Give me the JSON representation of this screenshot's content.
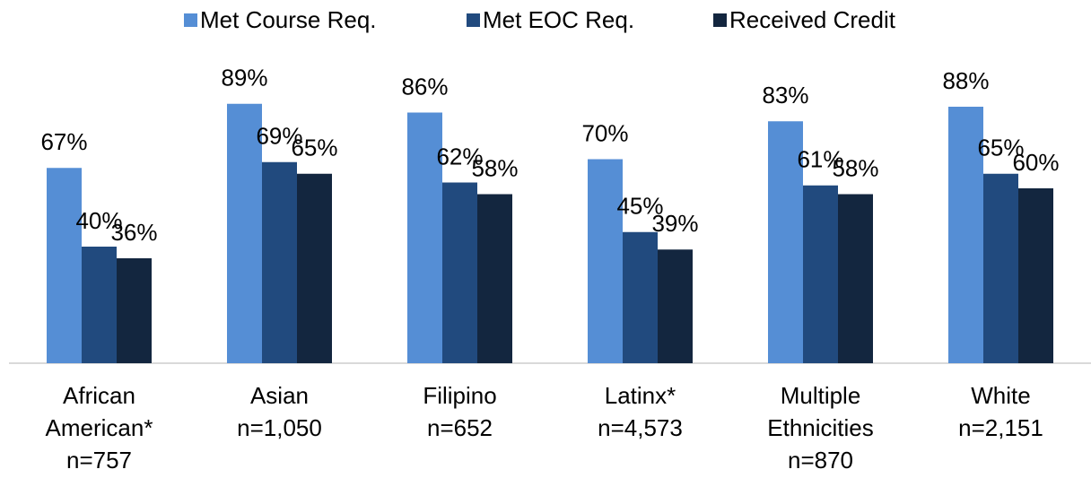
{
  "chart_data": {
    "type": "bar",
    "categories": [
      [
        "African",
        "American*",
        "n=757"
      ],
      [
        "Asian",
        "n=1,050"
      ],
      [
        "Filipino",
        "n=652"
      ],
      [
        "Latinx*",
        "n=4,573"
      ],
      [
        "Multiple",
        "Ethnicities",
        "n=870"
      ],
      [
        "White",
        "n=2,151"
      ]
    ],
    "series": [
      {
        "name": "Met Course Req.",
        "color": "#558ed5",
        "values": [
          67,
          89,
          86,
          70,
          83,
          88
        ],
        "value_labels": [
          "67%",
          "89%",
          "86%",
          "70%",
          "83%",
          "88%"
        ]
      },
      {
        "name": "Met EOC Req.",
        "color": "#214a7e",
        "values": [
          40,
          69,
          62,
          45,
          61,
          65
        ],
        "value_labels": [
          "40%",
          "69%",
          "62%",
          "45%",
          "61%",
          "65%"
        ]
      },
      {
        "name": "Received Credit",
        "color": "#13263f",
        "values": [
          36,
          65,
          58,
          39,
          58,
          60
        ],
        "value_labels": [
          "36%",
          "65%",
          "58%",
          "39%",
          "58%",
          "60%"
        ]
      }
    ],
    "ylim": [
      0,
      100
    ]
  }
}
